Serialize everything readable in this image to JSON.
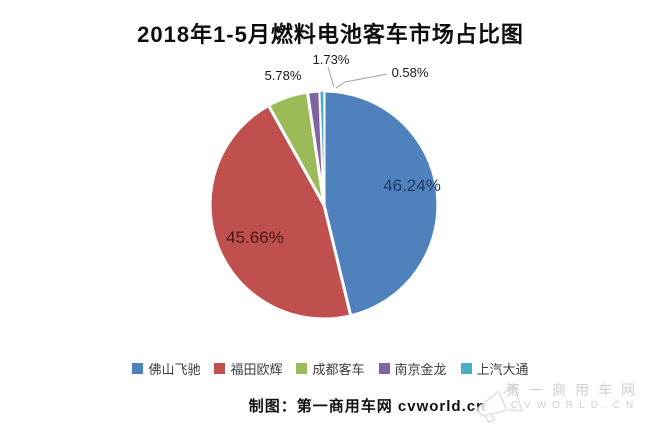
{
  "title": "2018年1-5月燃料电池客车市场占比图",
  "chart_data": {
    "type": "pie",
    "title": "2018年1-5月燃料电池客车市场占比图",
    "legend_position": "bottom",
    "start_angle_deg": 0,
    "direction": "clockwise",
    "series": [
      {
        "name": "佛山飞驰",
        "value": 46.24,
        "label": "46.24%",
        "color": "#4F81BD",
        "label_color": "#1F3B63",
        "label_placement": "inside"
      },
      {
        "name": "福田欧辉",
        "value": 45.66,
        "label": "45.66%",
        "color": "#C0504D",
        "label_color": "#441716",
        "label_placement": "inside"
      },
      {
        "name": "成都客车",
        "value": 5.78,
        "label": "5.78%",
        "color": "#9BBB59",
        "label_color": "#1A1A1A",
        "label_placement": "outside"
      },
      {
        "name": "南京金龙",
        "value": 1.73,
        "label": "1.73%",
        "color": "#8064A2",
        "label_color": "#1A1A1A",
        "label_placement": "outside"
      },
      {
        "name": "上汽大通",
        "value": 0.58,
        "label": "0.58%",
        "color": "#4BACC6",
        "label_color": "#1A1A1A",
        "label_placement": "outside"
      }
    ]
  },
  "footer": {
    "caption": "制图：第一商用车网 cvworld.cn"
  },
  "watermark": {
    "line1": "第一商用车网",
    "line2": "CVWORLD.CN"
  }
}
